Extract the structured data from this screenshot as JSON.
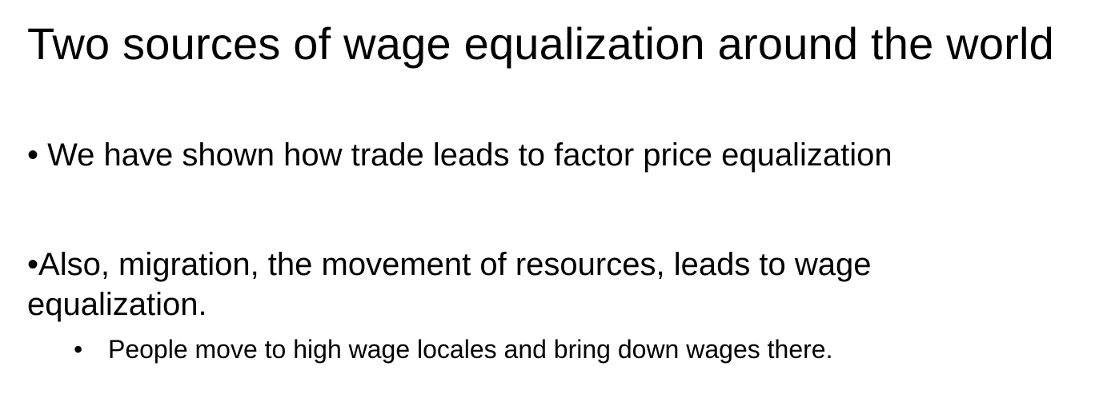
{
  "slide": {
    "title": "Two sources of wage equalization around the world",
    "bullets": [
      {
        "marker": "•",
        "text": "We have shown how trade leads to factor price equalization"
      },
      {
        "marker": "•",
        "text_line1": "Also, migration, the movement of resources, leads to wage",
        "text_line2": "equalization.",
        "sub_bullets": [
          {
            "marker": "•",
            "text": "People move to high wage locales and bring down wages there."
          }
        ]
      }
    ]
  }
}
